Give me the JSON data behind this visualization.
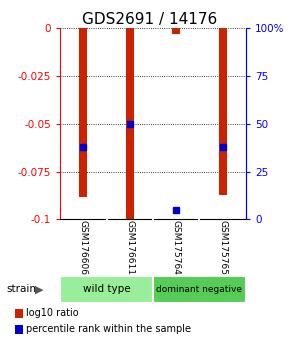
{
  "title": "GDS2691 / 14176",
  "samples": [
    "GSM176606",
    "GSM176611",
    "GSM175764",
    "GSM175765"
  ],
  "log10_ratio": [
    -0.088,
    -0.1,
    -0.003,
    -0.087
  ],
  "percentile_rank": [
    38,
    50,
    5,
    38
  ],
  "groups": [
    {
      "name": "wild type",
      "indices": [
        0,
        1
      ],
      "color": "#99ee99"
    },
    {
      "name": "dominant negative",
      "indices": [
        2,
        3
      ],
      "color": "#55cc55"
    }
  ],
  "ylim": [
    -0.1,
    0.0
  ],
  "yticks_left": [
    0,
    -0.025,
    -0.05,
    -0.075,
    -0.1
  ],
  "yticks_right": [
    100,
    75,
    50,
    25,
    0
  ],
  "bar_color": "#cc2200",
  "dot_color": "#0000cc",
  "bar_width": 0.18,
  "background_color": "#ffffff",
  "title_fontsize": 11,
  "tick_fontsize": 7.5,
  "legend_red_label": "log10 ratio",
  "legend_blue_label": "percentile rank within the sample",
  "label_gray": "#c8c8c8",
  "label_gray_dark": "#b0b0b0"
}
